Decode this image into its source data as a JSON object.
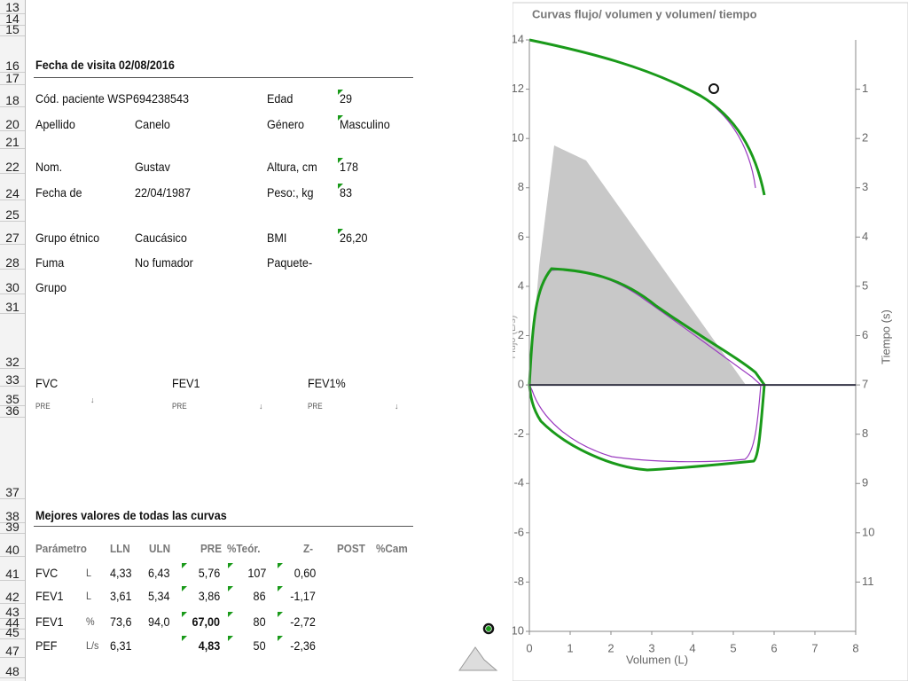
{
  "row_numbers": [
    "13",
    "14",
    "15",
    "16",
    "17",
    "18",
    "20",
    "21",
    "22",
    "24",
    "25",
    "27",
    "28",
    "30",
    "31",
    "32",
    "33",
    "35",
    "36",
    "37",
    "38",
    "39",
    "40",
    "41",
    "42",
    "43",
    "44",
    "45",
    "47",
    "48"
  ],
  "visit_title": "Fecha de visita 02/08/2016",
  "patient": [
    {
      "left": [
        "Cód. paciente WSP694238543"
      ],
      "right": [
        "Edad",
        "29"
      ]
    },
    {
      "left": [
        "Apellido",
        "Canelo"
      ],
      "right": [
        "Género",
        "Masculino"
      ]
    },
    {
      "left": [
        "Nom.",
        "Gustav"
      ],
      "right": [
        "Altura, cm",
        "178"
      ]
    },
    {
      "left": [
        "Fecha de",
        "22/04/1987"
      ],
      "right": [
        "Peso:, kg",
        "83"
      ]
    },
    {
      "left": [
        "Grupo étnico",
        "Caucásico"
      ],
      "right": [
        "BMI",
        "26,20"
      ]
    },
    {
      "left": [
        "Fuma",
        "No fumador"
      ],
      "right": [
        "Paquete-"
      ]
    },
    {
      "left": [
        "Grupo"
      ],
      "right": []
    }
  ],
  "mini_charts": [
    {
      "title": "FVC",
      "label": "PRE"
    },
    {
      "title": "FEV1",
      "label": "PRE"
    },
    {
      "title": "FEV1%",
      "label": "PRE"
    }
  ],
  "best_title": "Mejores valores de todas las curvas",
  "table": {
    "header": [
      "Parámetro",
      "LLN",
      "ULN",
      "PRE",
      "%Teór.",
      "Z-",
      "POST",
      "%Cam"
    ],
    "rows": [
      [
        "FVC",
        "L",
        "4,33",
        "6,43",
        "5,76",
        "107",
        "0,60"
      ],
      [
        "FEV1",
        "L",
        "3,61",
        "5,34",
        "3,86",
        "86",
        "-1,17"
      ],
      [
        "FEV1",
        "%",
        "73,6",
        "94,0",
        "67,00",
        "80",
        "-2,72"
      ],
      [
        "PEF",
        "L/s",
        "6,31",
        null,
        "4,83",
        "50",
        "-2,36"
      ]
    ]
  },
  "chart": {
    "title": "Curvas flujo/ volumen y volumen/ tiempo",
    "xlabel": "Volumen (L)",
    "ylabel": "Flujo (L/s)",
    "y2label": "Tiempo (s)",
    "xlim": [
      0,
      8
    ],
    "xticks": [
      0,
      1,
      2,
      3,
      4,
      5,
      6,
      7,
      8
    ],
    "ylim": [
      -10,
      14
    ],
    "yticks": [
      -10,
      -8,
      -6,
      -4,
      -2,
      0,
      2,
      4,
      6,
      8,
      10,
      12,
      14
    ],
    "y2lim": [
      12,
      0
    ],
    "y2ticks": [
      1,
      2,
      3,
      4,
      5,
      6,
      7,
      8,
      9,
      10,
      11
    ]
  }
}
